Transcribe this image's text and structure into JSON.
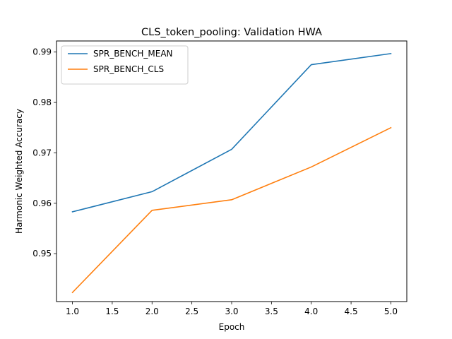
{
  "chart_data": {
    "type": "line",
    "title": "CLS_token_pooling: Validation HWA",
    "xlabel": "Epoch",
    "ylabel": "Harmonic Weighted Accuracy",
    "x": [
      1,
      2,
      3,
      4,
      5
    ],
    "xlim": [
      0.8,
      5.2
    ],
    "ylim": [
      0.9405,
      0.9922
    ],
    "xticks": [
      1.0,
      1.5,
      2.0,
      2.5,
      3.0,
      3.5,
      4.0,
      4.5,
      5.0
    ],
    "xtick_labels": [
      "1.0",
      "1.5",
      "2.0",
      "2.5",
      "3.0",
      "3.5",
      "4.0",
      "4.5",
      "5.0"
    ],
    "yticks": [
      0.95,
      0.96,
      0.97,
      0.98,
      0.99
    ],
    "ytick_labels": [
      "0.95",
      "0.96",
      "0.97",
      "0.98",
      "0.99"
    ],
    "grid": false,
    "legend_position": "top-left",
    "series": [
      {
        "name": "SPR_BENCH_MEAN",
        "color": "#1f77b4",
        "values": [
          0.9583,
          0.9623,
          0.9707,
          0.9875,
          0.9897
        ]
      },
      {
        "name": "SPR_BENCH_CLS",
        "color": "#ff7f0e",
        "values": [
          0.9423,
          0.9586,
          0.9607,
          0.9672,
          0.975
        ]
      }
    ]
  }
}
